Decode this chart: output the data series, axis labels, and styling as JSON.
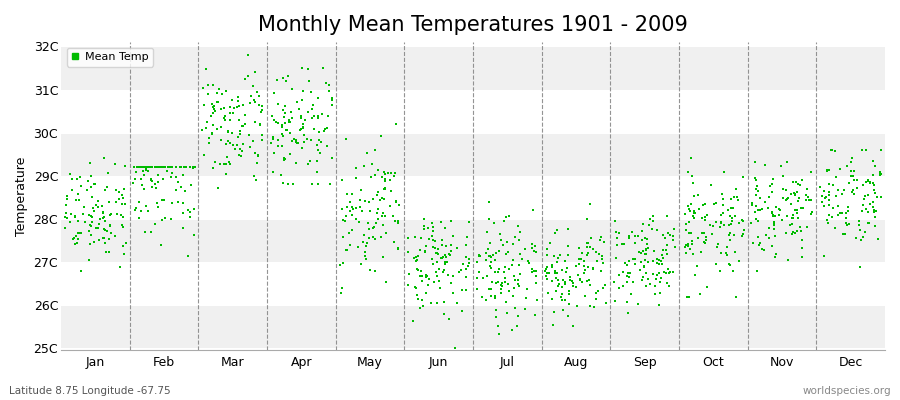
{
  "title": "Monthly Mean Temperatures 1901 - 2009",
  "ylabel": "Temperature",
  "subtitle_left": "Latitude 8.75 Longitude -67.75",
  "subtitle_right": "worldspecies.org",
  "legend_label": "Mean Temp",
  "dot_color": "#00BB00",
  "dot_size": 3,
  "marker": "s",
  "background_color": "#FFFFFF",
  "band_colors": [
    "#F0F0F0",
    "#FFFFFF"
  ],
  "ylim": [
    25,
    32
  ],
  "yticks": [
    25,
    26,
    27,
    28,
    29,
    30,
    31,
    32
  ],
  "ytick_labels": [
    "25C",
    "26C",
    "27C",
    "28C",
    "29C",
    "30C",
    "31C",
    "32C"
  ],
  "months": [
    "Jan",
    "Feb",
    "Mar",
    "Apr",
    "May",
    "Jun",
    "Jul",
    "Aug",
    "Sep",
    "Oct",
    "Nov",
    "Dec"
  ],
  "monthly_means": [
    28.1,
    29.0,
    30.2,
    30.1,
    28.2,
    27.0,
    26.8,
    26.8,
    27.2,
    27.8,
    28.2,
    28.5
  ],
  "monthly_stds": [
    0.55,
    0.75,
    0.65,
    0.75,
    0.75,
    0.6,
    0.55,
    0.55,
    0.55,
    0.6,
    0.55,
    0.6
  ],
  "monthly_ranges": [
    [
      26.8,
      30.1
    ],
    [
      27.0,
      29.2
    ],
    [
      28.5,
      31.8
    ],
    [
      28.8,
      31.5
    ],
    [
      26.0,
      30.2
    ],
    [
      25.0,
      29.2
    ],
    [
      24.9,
      28.7
    ],
    [
      25.0,
      28.6
    ],
    [
      25.8,
      29.2
    ],
    [
      26.2,
      29.6
    ],
    [
      26.8,
      29.5
    ],
    [
      25.8,
      29.6
    ]
  ],
  "n_years": 109,
  "title_fontsize": 15,
  "axis_label_fontsize": 9,
  "tick_label_fontsize": 9
}
